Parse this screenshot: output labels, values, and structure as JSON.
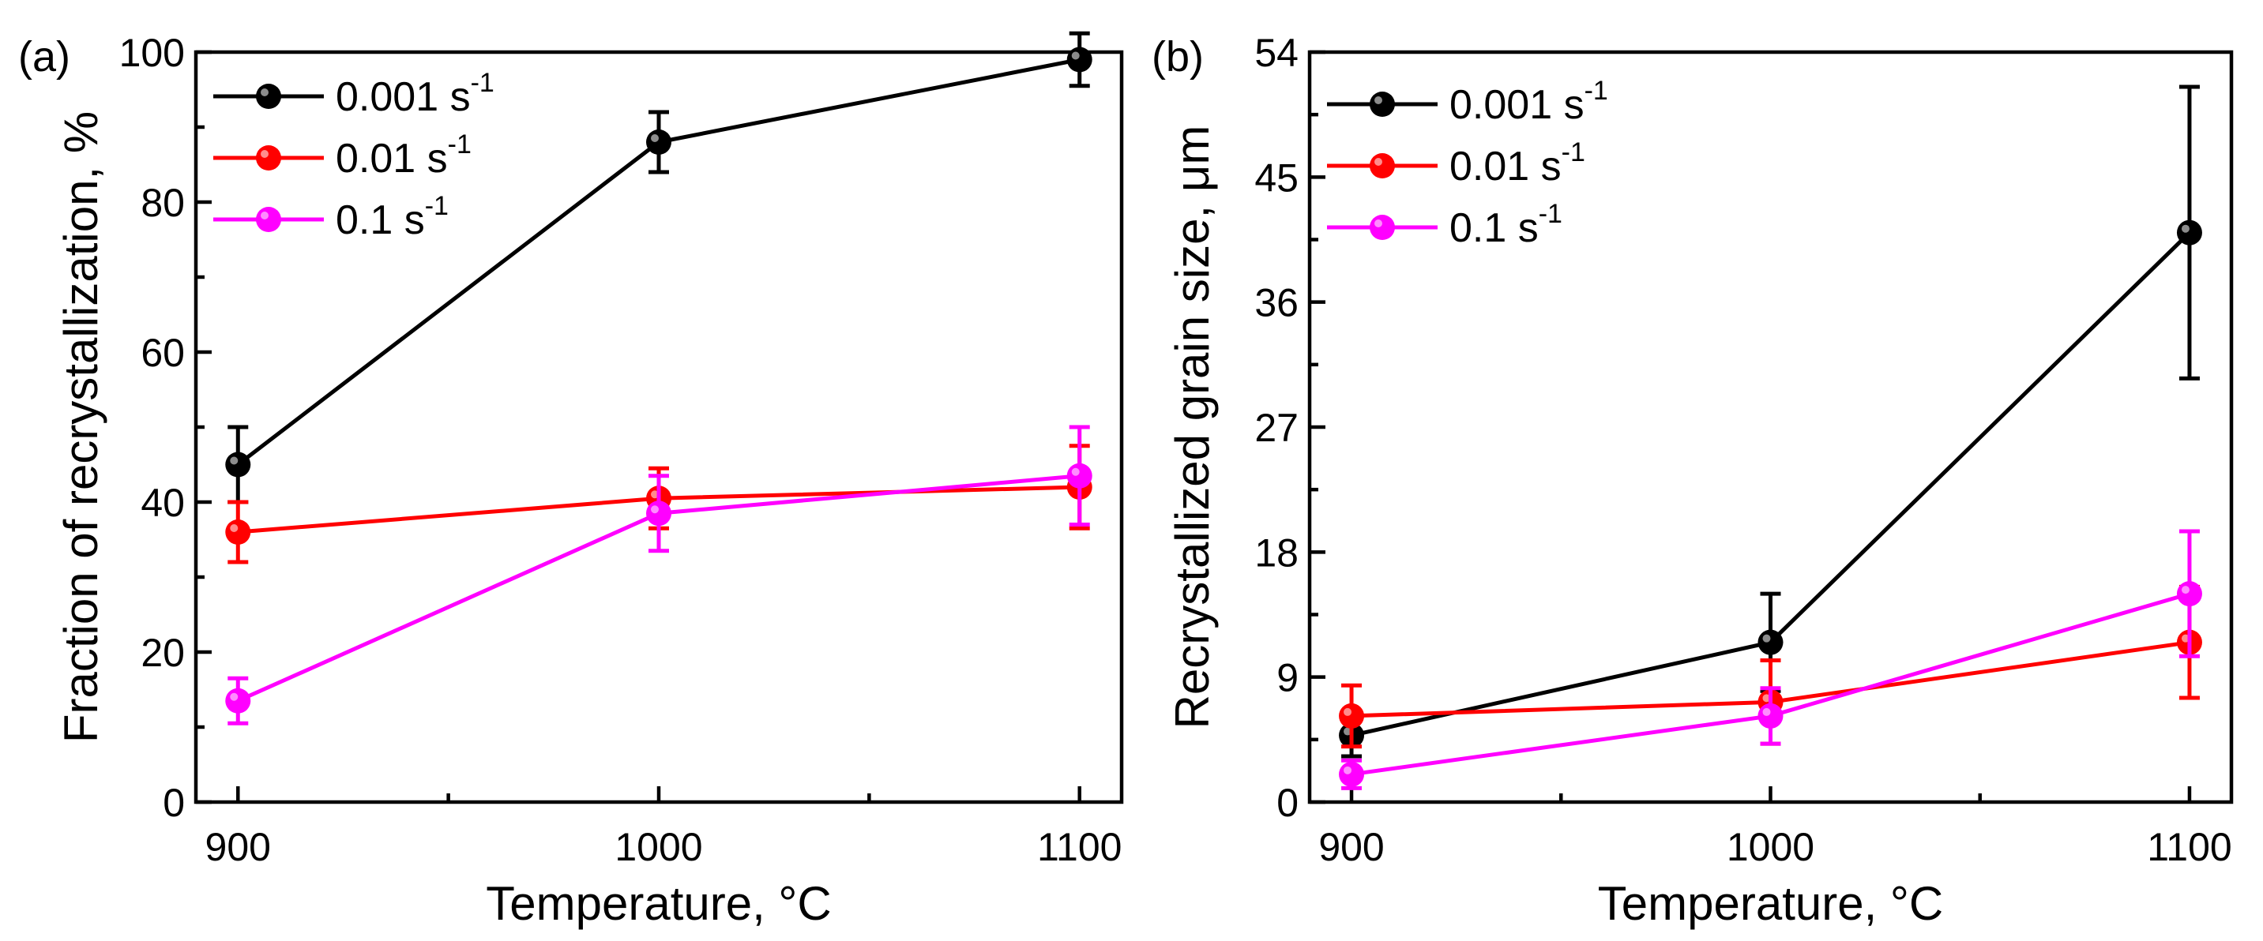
{
  "chart_data": [
    {
      "type": "line",
      "panel_label": "(a)",
      "xlabel": "Temperature, °C",
      "ylabel": "Fraction of recrystallization, %",
      "x_ticks": [
        "900",
        "1000",
        "1100"
      ],
      "y_ticks": [
        "0",
        "20",
        "40",
        "60",
        "80",
        "100"
      ],
      "xlim": [
        890,
        1110
      ],
      "ylim": [
        0,
        100
      ],
      "x": [
        900,
        1000,
        1100
      ],
      "legend_position": "top-left",
      "series": [
        {
          "name": "0.001 s",
          "superscript": "-1",
          "color": "#000000",
          "values": [
            45,
            88,
            99
          ],
          "errors": [
            5,
            4,
            3.5
          ]
        },
        {
          "name": "0.01 s",
          "superscript": "-1",
          "color": "#ff0000",
          "values": [
            36,
            40.5,
            42
          ],
          "errors": [
            4,
            4,
            5.5
          ]
        },
        {
          "name": "0.1 s",
          "superscript": "-1",
          "color": "#ff00ff",
          "values": [
            13.5,
            38.5,
            43.5
          ],
          "errors": [
            3,
            5,
            6.5
          ]
        }
      ]
    },
    {
      "type": "line",
      "panel_label": "(b)",
      "xlabel": "Temperature, °C",
      "ylabel": "Recrystallized grain size, μm",
      "x_ticks": [
        "900",
        "1000",
        "1100"
      ],
      "y_ticks": [
        "0",
        "9",
        "18",
        "27",
        "36",
        "45",
        "54"
      ],
      "xlim": [
        890,
        1110
      ],
      "ylim": [
        0,
        54
      ],
      "x": [
        900,
        1000,
        1100
      ],
      "legend_position": "top-left",
      "series": [
        {
          "name": "0.001 s",
          "superscript": "-1",
          "color": "#000000",
          "values": [
            4.8,
            11.5,
            41
          ],
          "errors": [
            1.5,
            3.5,
            10.5
          ]
        },
        {
          "name": "0.01 s",
          "superscript": "-1",
          "color": "#ff0000",
          "values": [
            6.2,
            7.2,
            11.5
          ],
          "errors": [
            2.2,
            3,
            4
          ]
        },
        {
          "name": "0.1 s",
          "superscript": "-1",
          "color": "#ff00ff",
          "values": [
            2,
            6.2,
            15
          ],
          "errors": [
            1,
            2,
            4.5
          ]
        }
      ]
    }
  ]
}
